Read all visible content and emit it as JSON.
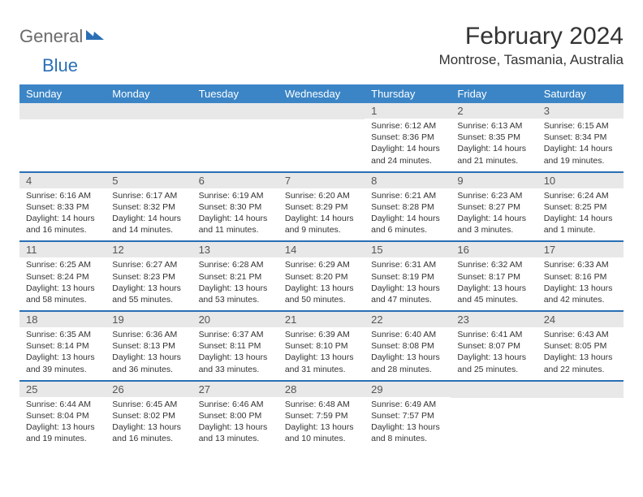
{
  "logo": {
    "text1": "General",
    "text2": "Blue"
  },
  "title": "February 2024",
  "location": "Montrose, Tasmania, Australia",
  "colors": {
    "header_bg": "#3b85c6",
    "header_text": "#ffffff",
    "divider": "#2a6fb5",
    "daynum_bg": "#e8e8e8",
    "text": "#333333",
    "logo_gray": "#6b6b6b",
    "logo_blue": "#2a6fb5"
  },
  "dayHeaders": [
    "Sunday",
    "Monday",
    "Tuesday",
    "Wednesday",
    "Thursday",
    "Friday",
    "Saturday"
  ],
  "weeks": [
    [
      null,
      null,
      null,
      null,
      {
        "n": "1",
        "sr": "6:12 AM",
        "ss": "8:36 PM",
        "dl": "14 hours and 24 minutes."
      },
      {
        "n": "2",
        "sr": "6:13 AM",
        "ss": "8:35 PM",
        "dl": "14 hours and 21 minutes."
      },
      {
        "n": "3",
        "sr": "6:15 AM",
        "ss": "8:34 PM",
        "dl": "14 hours and 19 minutes."
      }
    ],
    [
      {
        "n": "4",
        "sr": "6:16 AM",
        "ss": "8:33 PM",
        "dl": "14 hours and 16 minutes."
      },
      {
        "n": "5",
        "sr": "6:17 AM",
        "ss": "8:32 PM",
        "dl": "14 hours and 14 minutes."
      },
      {
        "n": "6",
        "sr": "6:19 AM",
        "ss": "8:30 PM",
        "dl": "14 hours and 11 minutes."
      },
      {
        "n": "7",
        "sr": "6:20 AM",
        "ss": "8:29 PM",
        "dl": "14 hours and 9 minutes."
      },
      {
        "n": "8",
        "sr": "6:21 AM",
        "ss": "8:28 PM",
        "dl": "14 hours and 6 minutes."
      },
      {
        "n": "9",
        "sr": "6:23 AM",
        "ss": "8:27 PM",
        "dl": "14 hours and 3 minutes."
      },
      {
        "n": "10",
        "sr": "6:24 AM",
        "ss": "8:25 PM",
        "dl": "14 hours and 1 minute."
      }
    ],
    [
      {
        "n": "11",
        "sr": "6:25 AM",
        "ss": "8:24 PM",
        "dl": "13 hours and 58 minutes."
      },
      {
        "n": "12",
        "sr": "6:27 AM",
        "ss": "8:23 PM",
        "dl": "13 hours and 55 minutes."
      },
      {
        "n": "13",
        "sr": "6:28 AM",
        "ss": "8:21 PM",
        "dl": "13 hours and 53 minutes."
      },
      {
        "n": "14",
        "sr": "6:29 AM",
        "ss": "8:20 PM",
        "dl": "13 hours and 50 minutes."
      },
      {
        "n": "15",
        "sr": "6:31 AM",
        "ss": "8:19 PM",
        "dl": "13 hours and 47 minutes."
      },
      {
        "n": "16",
        "sr": "6:32 AM",
        "ss": "8:17 PM",
        "dl": "13 hours and 45 minutes."
      },
      {
        "n": "17",
        "sr": "6:33 AM",
        "ss": "8:16 PM",
        "dl": "13 hours and 42 minutes."
      }
    ],
    [
      {
        "n": "18",
        "sr": "6:35 AM",
        "ss": "8:14 PM",
        "dl": "13 hours and 39 minutes."
      },
      {
        "n": "19",
        "sr": "6:36 AM",
        "ss": "8:13 PM",
        "dl": "13 hours and 36 minutes."
      },
      {
        "n": "20",
        "sr": "6:37 AM",
        "ss": "8:11 PM",
        "dl": "13 hours and 33 minutes."
      },
      {
        "n": "21",
        "sr": "6:39 AM",
        "ss": "8:10 PM",
        "dl": "13 hours and 31 minutes."
      },
      {
        "n": "22",
        "sr": "6:40 AM",
        "ss": "8:08 PM",
        "dl": "13 hours and 28 minutes."
      },
      {
        "n": "23",
        "sr": "6:41 AM",
        "ss": "8:07 PM",
        "dl": "13 hours and 25 minutes."
      },
      {
        "n": "24",
        "sr": "6:43 AM",
        "ss": "8:05 PM",
        "dl": "13 hours and 22 minutes."
      }
    ],
    [
      {
        "n": "25",
        "sr": "6:44 AM",
        "ss": "8:04 PM",
        "dl": "13 hours and 19 minutes."
      },
      {
        "n": "26",
        "sr": "6:45 AM",
        "ss": "8:02 PM",
        "dl": "13 hours and 16 minutes."
      },
      {
        "n": "27",
        "sr": "6:46 AM",
        "ss": "8:00 PM",
        "dl": "13 hours and 13 minutes."
      },
      {
        "n": "28",
        "sr": "6:48 AM",
        "ss": "7:59 PM",
        "dl": "13 hours and 10 minutes."
      },
      {
        "n": "29",
        "sr": "6:49 AM",
        "ss": "7:57 PM",
        "dl": "13 hours and 8 minutes."
      },
      null,
      null
    ]
  ],
  "labels": {
    "sunrise": "Sunrise:",
    "sunset": "Sunset:",
    "daylight": "Daylight:"
  }
}
